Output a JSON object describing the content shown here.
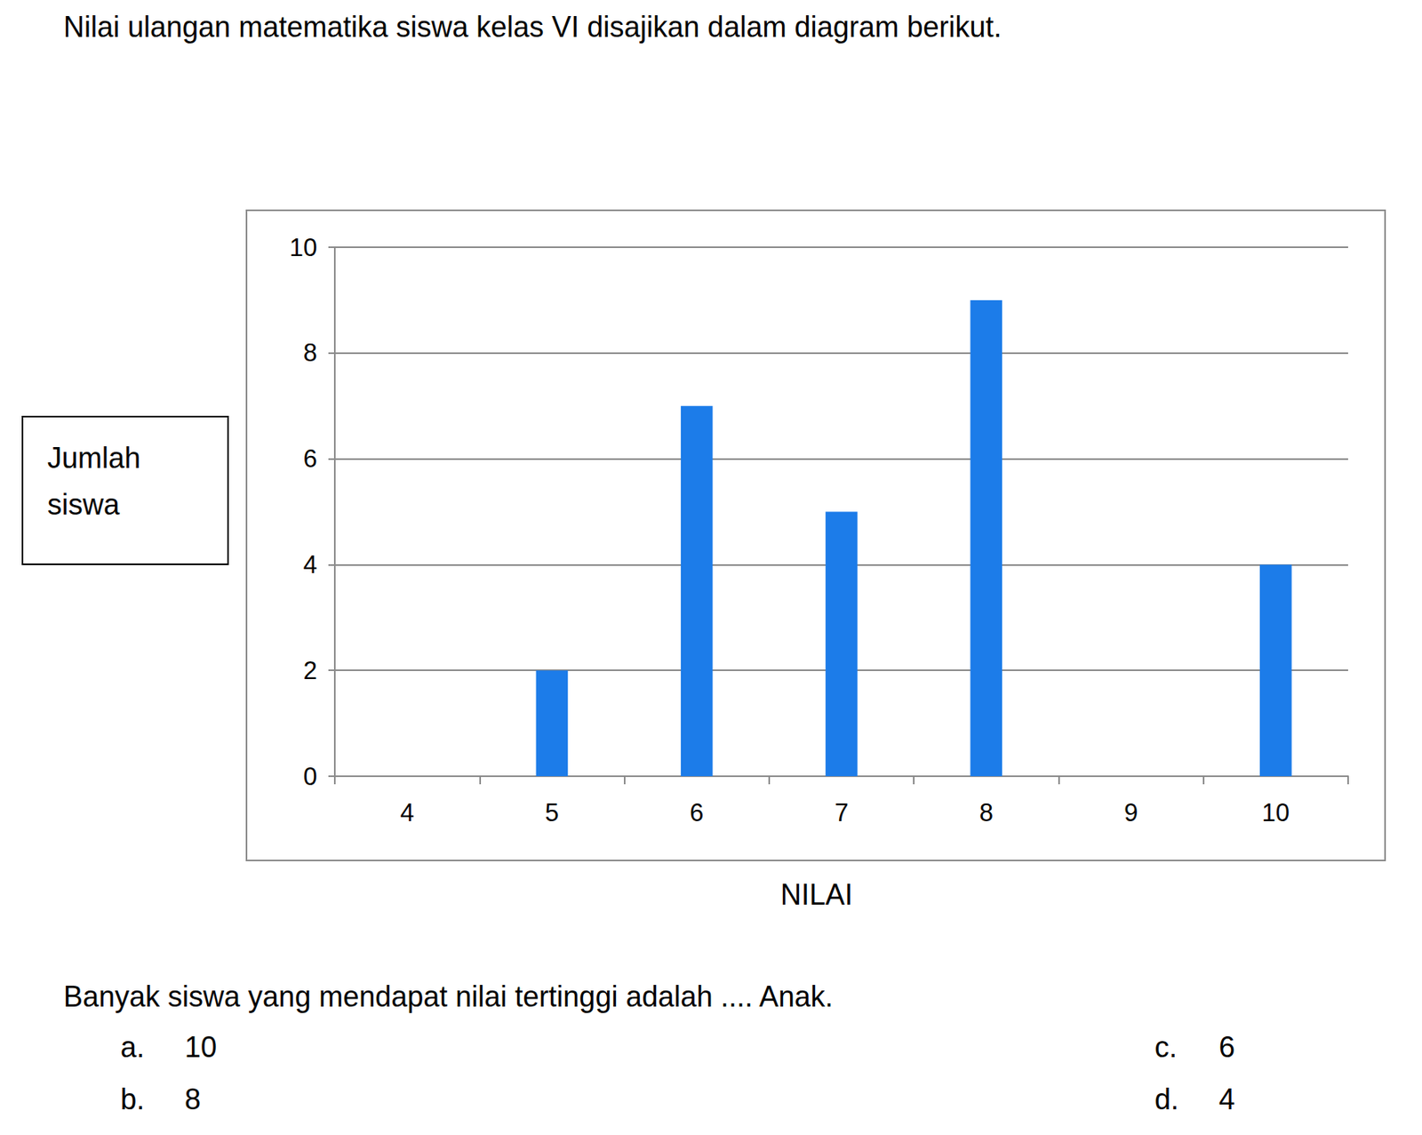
{
  "header": "Nilai ulangan matematika siswa  kelas VI  disajikan dalam diagram berikut.",
  "chart_data": {
    "type": "bar",
    "categories": [
      "4",
      "5",
      "6",
      "7",
      "8",
      "9",
      "10"
    ],
    "values": [
      0,
      2,
      7,
      5,
      9,
      0,
      4
    ],
    "color": "#1c7ce9",
    "xlabel": "NILAI",
    "ylabel": "Jumlah siswa",
    "ylim": [
      0,
      10
    ],
    "yticks": [
      0,
      2,
      4,
      6,
      8,
      10
    ],
    "grid": true
  },
  "question": "Banyak siswa yang mendapat  nilai tertinggi adalah .... Anak.",
  "options": [
    {
      "letter": "a.",
      "text": "10"
    },
    {
      "letter": "b.",
      "text": "8"
    },
    {
      "letter": "c.",
      "text": "6"
    },
    {
      "letter": "d.",
      "text": "4"
    }
  ]
}
